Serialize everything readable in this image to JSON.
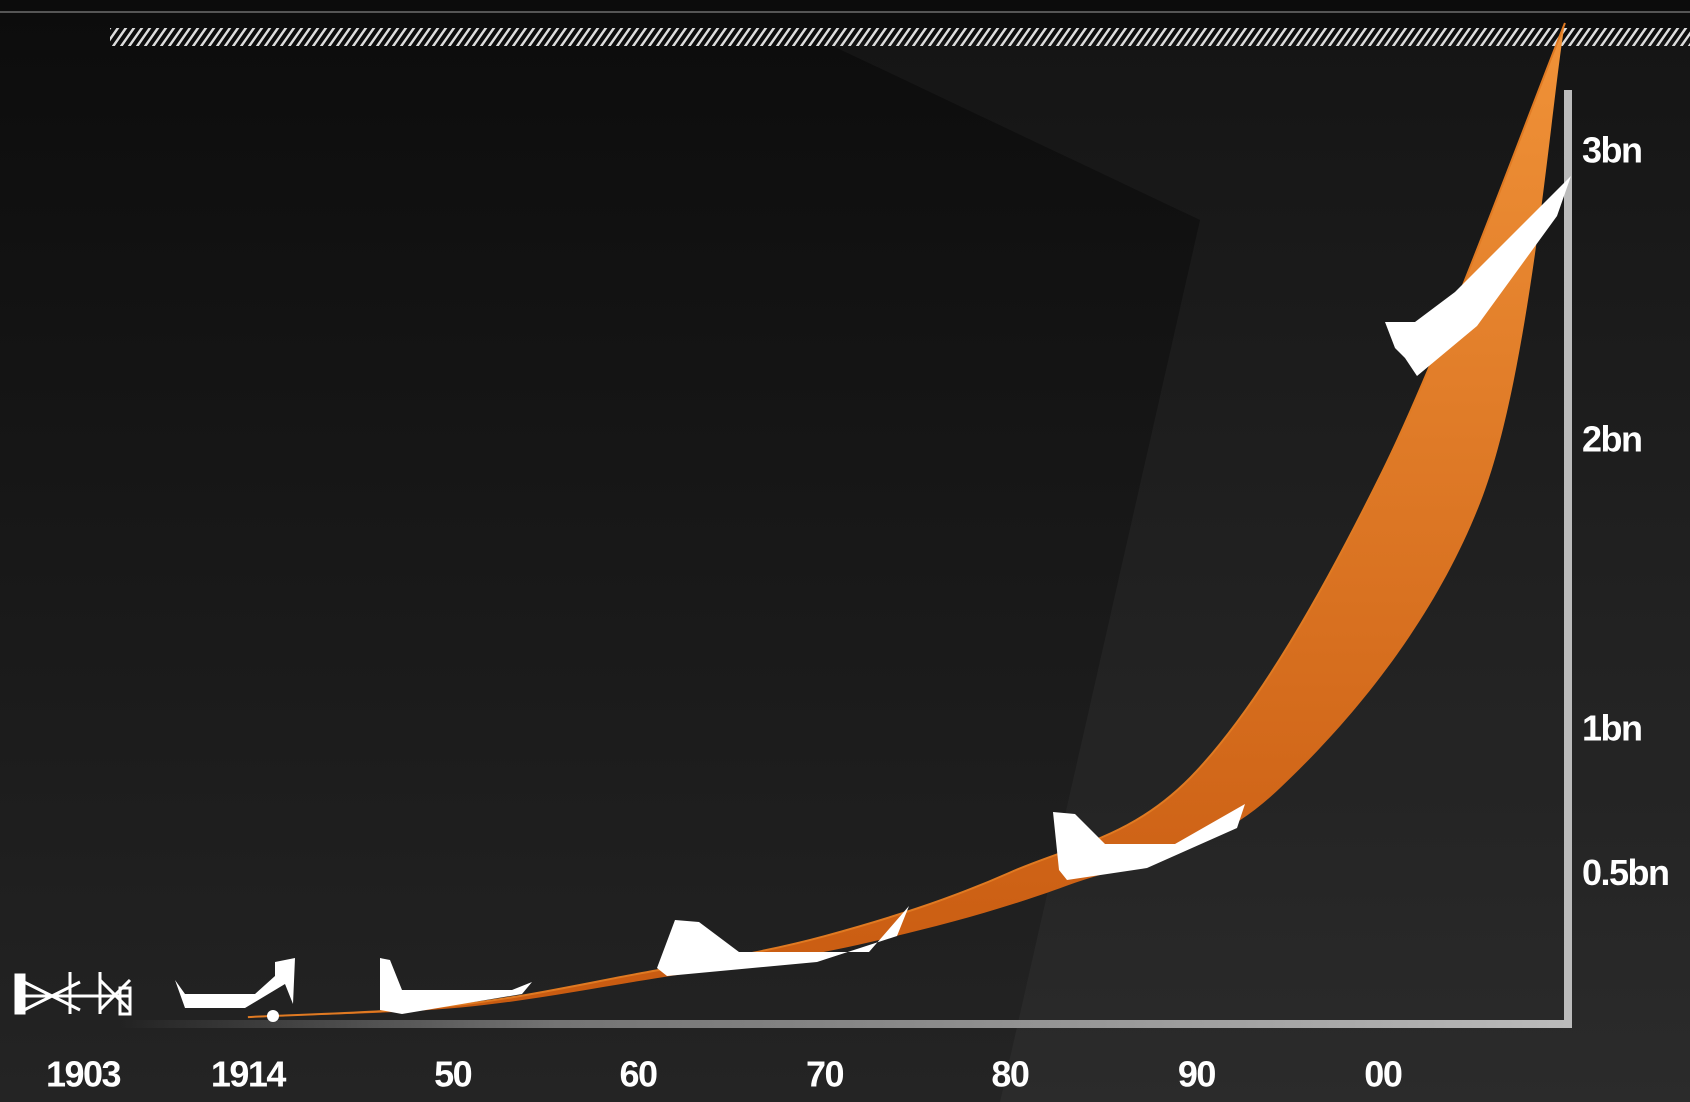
{
  "chart_data": {
    "type": "area",
    "categories": [
      "1903",
      "1914",
      "50",
      "60",
      "70",
      "80",
      "90",
      "00",
      null
    ],
    "values": [
      null,
      0.01,
      0.05,
      0.16,
      0.29,
      0.51,
      0.86,
      1.9,
      3.45
    ],
    "color": "#e07a22",
    "ylim": [
      0,
      3.5
    ],
    "yticks": [
      {
        "value": 0.5,
        "label": "0.5bn"
      },
      {
        "value": 1,
        "label": "1bn"
      },
      {
        "value": 2,
        "label": "2bn"
      },
      {
        "value": 3,
        "label": "3bn"
      }
    ]
  }
}
